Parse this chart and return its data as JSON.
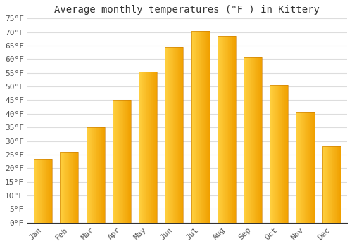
{
  "title": "Average monthly temperatures (°F ) in Kittery",
  "months": [
    "Jan",
    "Feb",
    "Mar",
    "Apr",
    "May",
    "Jun",
    "Jul",
    "Aug",
    "Sep",
    "Oct",
    "Nov",
    "Dec"
  ],
  "values": [
    23.5,
    26.0,
    35.0,
    45.0,
    55.5,
    64.5,
    70.5,
    68.5,
    61.0,
    50.5,
    40.5,
    28.0
  ],
  "bar_color_left": "#FFD040",
  "bar_color_right": "#F0A000",
  "bar_edge_color": "#C87800",
  "background_color": "#FFFFFF",
  "grid_color": "#DDDDDD",
  "ytick_color": "#555555",
  "xtick_color": "#555555",
  "title_color": "#333333",
  "ylim": [
    0,
    75
  ],
  "ytick_step": 5,
  "title_fontsize": 10,
  "tick_fontsize": 8,
  "bar_width": 0.7
}
